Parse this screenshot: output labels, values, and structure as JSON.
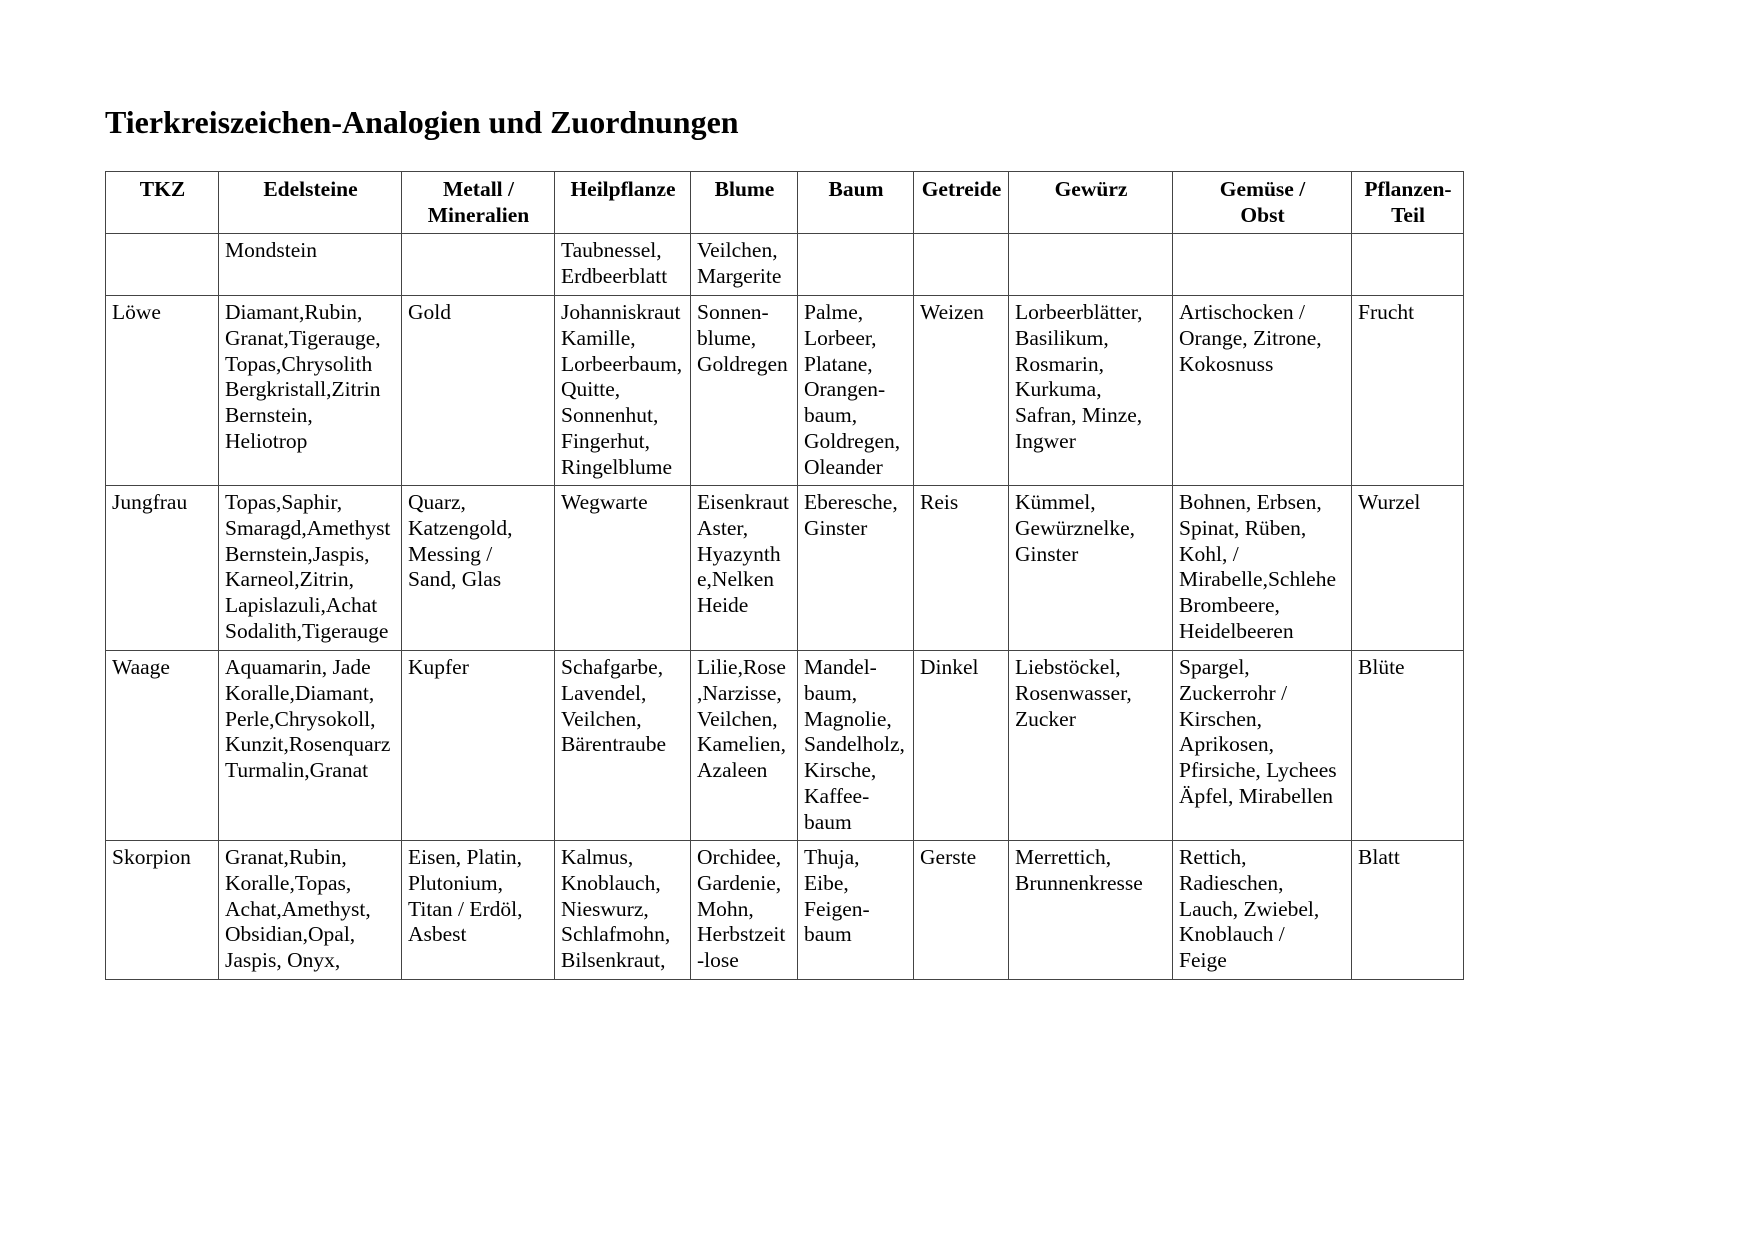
{
  "title": "Tierkreiszeichen-Analogien und Zuordnungen",
  "headers": [
    "TKZ",
    "Edelsteine",
    "Metall /\nMineralien",
    "Heilpflanze",
    "Blume",
    "Baum",
    "Getreide",
    "Gewürz",
    "Gemüse /\nObst",
    "Pflanzen-\nTeil"
  ],
  "rows": [
    [
      "",
      "Mondstein",
      "",
      "Taubnessel,\nErdbeerblatt",
      "Veilchen,\nMargerite",
      "",
      "",
      "",
      "",
      ""
    ],
    [
      "Löwe",
      "Diamant,Rubin,\nGranat,Tigerauge,\nTopas,Chrysolith\nBergkristall,Zitrin\nBernstein,\nHeliotrop",
      "Gold",
      "Johanniskraut\nKamille,\nLorbeerbaum,\nQuitte,\nSonnenhut,\nFingerhut,\nRingelblume",
      "Sonnen-\nblume,\nGoldregen",
      "Palme,\nLorbeer,\nPlatane,\nOrangen-\nbaum,\nGoldregen,\nOleander",
      "Weizen",
      "Lorbeerblätter,\nBasilikum,\nRosmarin,\nKurkuma,\nSafran, Minze,\nIngwer",
      "Artischocken /\nOrange, Zitrone,\nKokosnuss",
      "Frucht"
    ],
    [
      "Jungfrau",
      "Topas,Saphir,\nSmaragd,Amethyst\nBernstein,Jaspis,\nKarneol,Zitrin,\nLapislazuli,Achat\nSodalith,Tigerauge",
      "Quarz,\nKatzengold,\nMessing  /\nSand, Glas",
      "Wegwarte",
      "Eisenkraut\nAster,\nHyazynth\ne,Nelken\nHeide",
      "Eberesche,\nGinster",
      "Reis",
      "Kümmel,\nGewürznelke,\nGinster",
      "Bohnen, Erbsen,\nSpinat, Rüben,\nKohl,  /\nMirabelle,Schlehe\nBrombeere,\nHeidelbeeren",
      "Wurzel"
    ],
    [
      "Waage",
      "Aquamarin, Jade\nKoralle,Diamant,\nPerle,Chrysokoll,\nKunzit,Rosenquarz\nTurmalin,Granat",
      "Kupfer",
      "Schafgarbe,\nLavendel,\nVeilchen,\nBärentraube",
      "Lilie,Rose\n,Narzisse,\nVeilchen,\nKamelien,\nAzaleen",
      "Mandel-\nbaum,\nMagnolie,\nSandelholz,\nKirsche,\nKaffee-\nbaum",
      "Dinkel",
      "Liebstöckel,\nRosenwasser,\nZucker",
      "Spargel,\nZuckerrohr /\nKirschen,\nAprikosen,\nPfirsiche, Lychees\nÄpfel, Mirabellen",
      "Blüte"
    ],
    [
      "Skorpion",
      "Granat,Rubin,\nKoralle,Topas,\nAchat,Amethyst,\nObsidian,Opal,\nJaspis, Onyx,",
      "Eisen, Platin,\nPlutonium,\nTitan / Erdöl,\nAsbest",
      "Kalmus,\nKnoblauch,\nNieswurz,\nSchlafmohn,\nBilsenkraut,",
      "Orchidee,\nGardenie,\nMohn,\nHerbstzeit\n-lose",
      "Thuja,\nEibe,\nFeigen-\nbaum",
      "Gerste",
      "Merrettich,\nBrunnenkresse",
      "Rettich,\nRadieschen,\nLauch, Zwiebel,\nKnoblauch /\nFeige",
      "Blatt"
    ]
  ]
}
